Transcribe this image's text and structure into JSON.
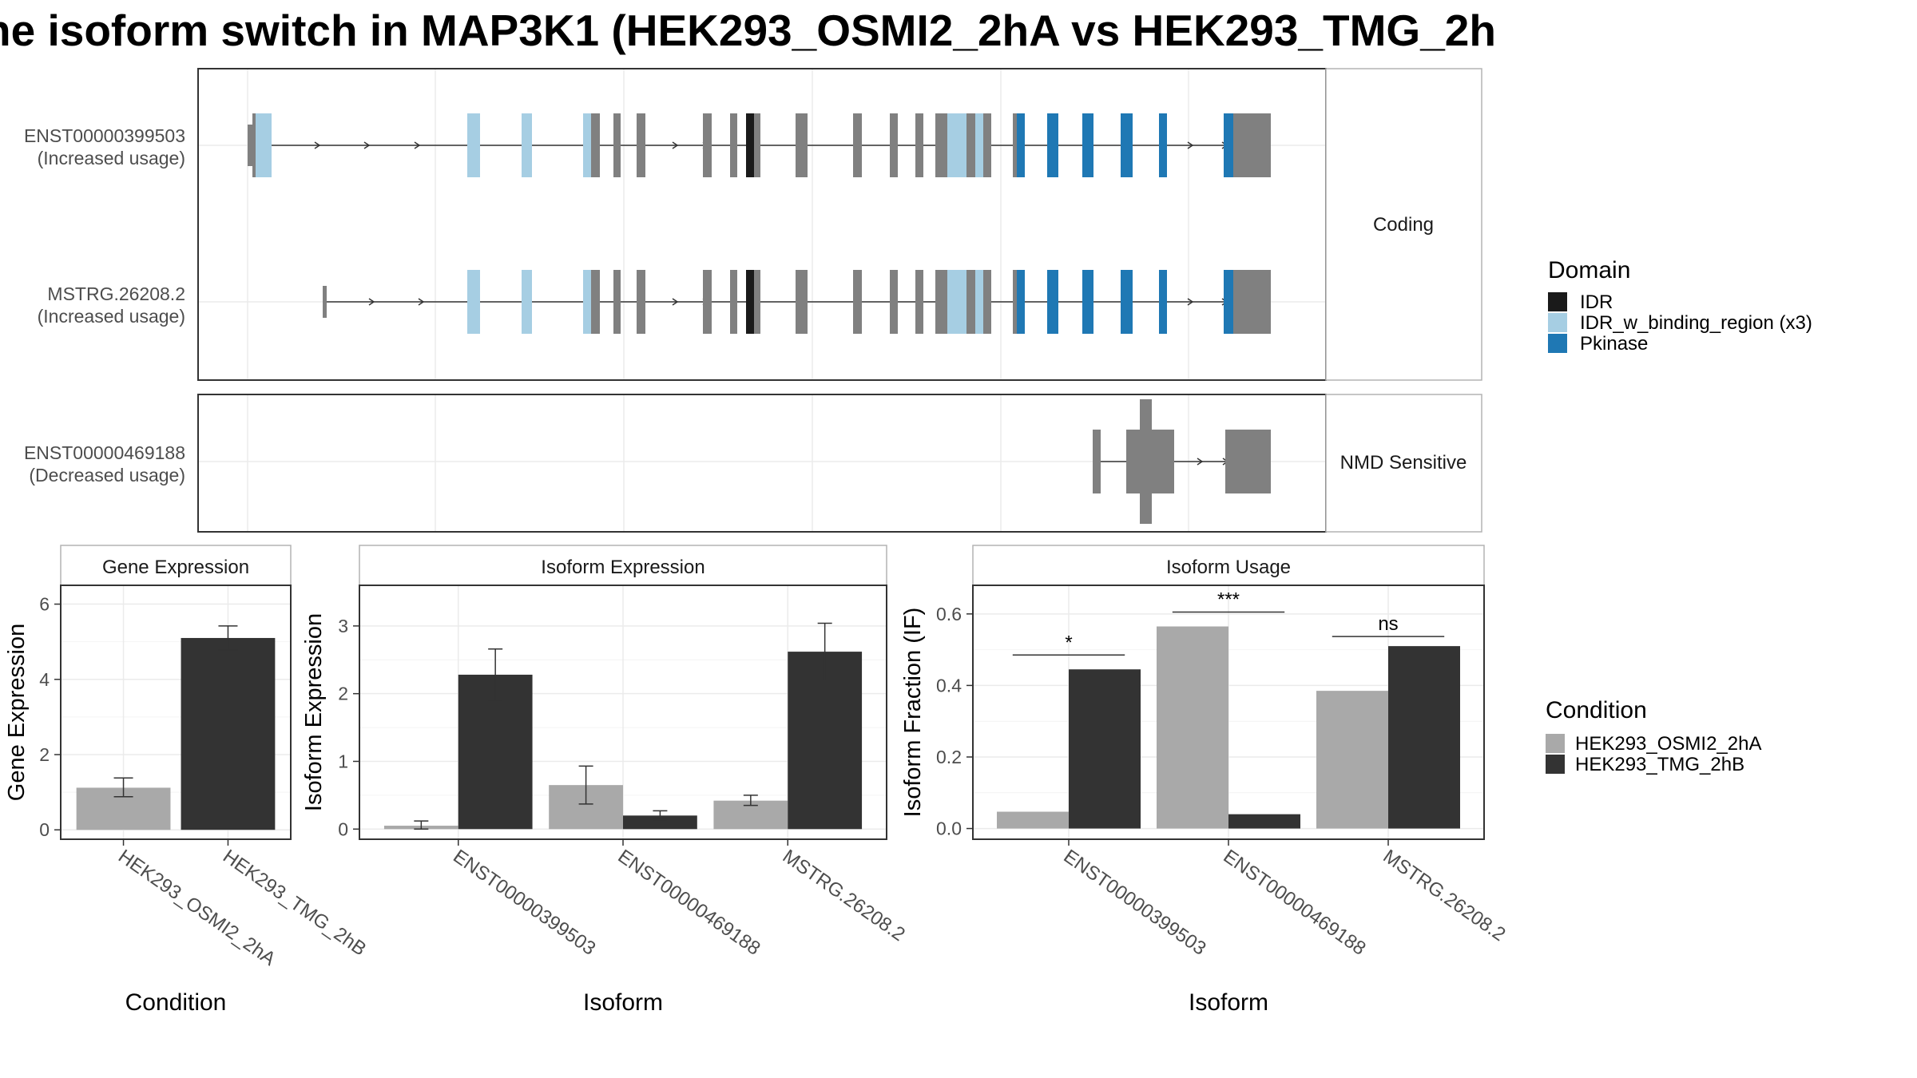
{
  "title": "ne isoform switch in MAP3K1 (HEK293_OSMI2_2hA vs HEK293_TMG_2h",
  "colors": {
    "exon": "#808080",
    "IDR": "#1a1a1a",
    "IDR_w_binding_region (x3)": "#a6cee3",
    "Pkinase": "#1f78b4",
    "cond_a": "#a9a9a9",
    "cond_b": "#333333",
    "grid": "#ebebeb",
    "panel_border": "#333333",
    "strip_border": "#b3b3b3"
  },
  "domain_legend": {
    "title": "Domain",
    "items": [
      "IDR",
      "IDR_w_binding_region (x3)",
      "Pkinase"
    ]
  },
  "condition_legend": {
    "title": "Condition",
    "items": [
      "HEK293_OSMI2_2hA",
      "HEK293_TMG_2hB"
    ]
  },
  "structure": {
    "coding_label": "Coding",
    "nmd_label": "NMD Sensitive",
    "transcripts": [
      {
        "id": "ENST00000399503",
        "usage": "(Increased usage)"
      },
      {
        "id": "MSTRG.26208.2",
        "usage": "(Increased usage)"
      },
      {
        "id": "ENST00000469188",
        "usage": "(Decreased usage)"
      }
    ]
  },
  "chart_data": [
    {
      "type": "bar",
      "title": "Gene Expression",
      "xlabel": "Condition",
      "ylabel": "Gene Expression",
      "categories": [
        "HEK293_OSMI2_2hA",
        "HEK293_TMG_2hB"
      ],
      "values": [
        1.12,
        5.1
      ],
      "errors": [
        [
          0.88,
          1.38
        ],
        [
          4.78,
          5.42
        ]
      ],
      "yticks": [
        0,
        2,
        4,
        6
      ],
      "ylim": [
        -0.25,
        6.5
      ],
      "grid": true
    },
    {
      "type": "bar",
      "title": "Isoform Expression",
      "xlabel": "Isoform",
      "ylabel": "Isoform Expression",
      "categories": [
        "ENST00000399503",
        "ENST00000469188",
        "MSTRG.26208.2"
      ],
      "series": [
        {
          "name": "HEK293_OSMI2_2hA",
          "values": [
            0.05,
            0.65,
            0.42
          ],
          "errors": [
            [
              0.0,
              0.12
            ],
            [
              0.37,
              0.93
            ],
            [
              0.35,
              0.5
            ]
          ]
        },
        {
          "name": "HEK293_TMG_2hB",
          "values": [
            2.28,
            0.2,
            2.62
          ],
          "errors": [
            [
              1.9,
              2.66
            ],
            [
              0.14,
              0.27
            ],
            [
              2.2,
              3.04
            ]
          ]
        }
      ],
      "yticks": [
        0,
        1,
        2,
        3
      ],
      "ylim": [
        -0.15,
        3.6
      ],
      "grid": true
    },
    {
      "type": "bar",
      "title": "Isoform Usage",
      "xlabel": "Isoform",
      "ylabel": "Isoform Fraction (IF)",
      "categories": [
        "ENST00000399503",
        "ENST00000469188",
        "MSTRG.26208.2"
      ],
      "series": [
        {
          "name": "HEK293_OSMI2_2hA",
          "values": [
            0.047,
            0.565,
            0.385
          ]
        },
        {
          "name": "HEK293_TMG_2hB",
          "values": [
            0.445,
            0.04,
            0.51
          ]
        }
      ],
      "significance": [
        "*",
        "***",
        "ns"
      ],
      "yticks": [
        0.0,
        0.2,
        0.4,
        0.6
      ],
      "ytick_labels": [
        "0.0",
        "0.2",
        "0.4",
        "0.6"
      ],
      "ylim": [
        -0.03,
        0.68
      ],
      "grid": true
    }
  ]
}
